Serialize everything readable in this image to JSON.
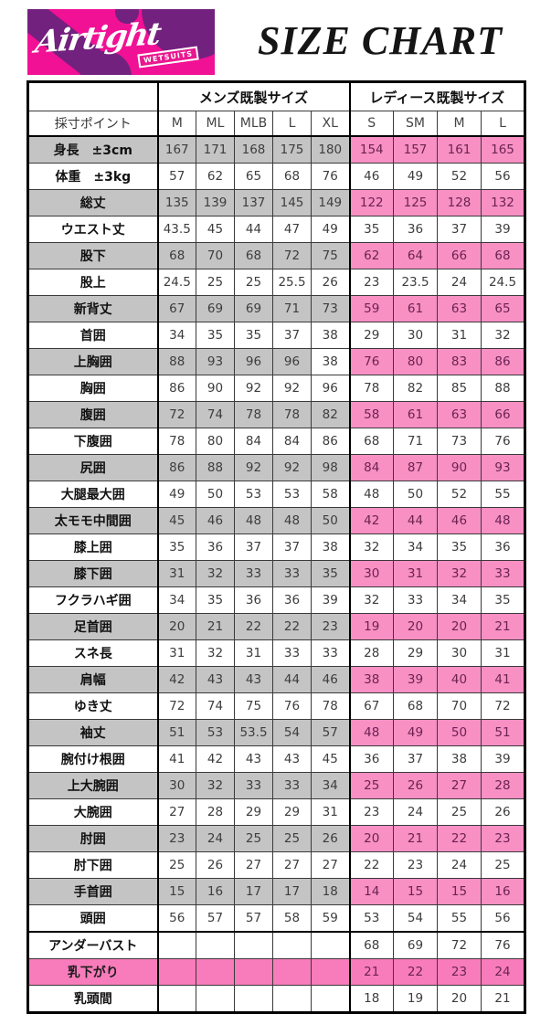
{
  "header": {
    "title": "SIZE CHART",
    "logo": {
      "brand": "Airtight",
      "sub_badge": "WETSUITS",
      "bg_color": "#f01195",
      "blob_color": "#72217e"
    }
  },
  "table": {
    "corner_label": "採寸ポイント",
    "group_headers": {
      "mens": "メンズ既製サイズ",
      "ladies": "レディース既製サイズ"
    },
    "mens_sizes": [
      "M",
      "ML",
      "MLB",
      "L",
      "XL"
    ],
    "ladies_sizes": [
      "S",
      "SM",
      "M",
      "L"
    ],
    "colors": {
      "mens_shaded_cell": "#c4c4c4",
      "ladies_shaded_cell": "#f890c4",
      "full_pink_row": "#f87cbb",
      "plain_cell": "#ffffff"
    },
    "rows": [
      {
        "label": "身長　±3cm",
        "shade": "shaded",
        "mens": [
          "167",
          "171",
          "168",
          "175",
          "180"
        ],
        "ladies": [
          "154",
          "157",
          "161",
          "165"
        ]
      },
      {
        "label": "体重　±3kg",
        "shade": "plain",
        "mens": [
          "57",
          "62",
          "65",
          "68",
          "76"
        ],
        "ladies": [
          "46",
          "49",
          "52",
          "56"
        ]
      },
      {
        "label": "総丈",
        "shade": "shaded",
        "mens": [
          "135",
          "139",
          "137",
          "145",
          "149"
        ],
        "ladies": [
          "122",
          "125",
          "128",
          "132"
        ]
      },
      {
        "label": "ウエスト丈",
        "shade": "plain",
        "mens": [
          "43.5",
          "45",
          "44",
          "47",
          "49"
        ],
        "ladies": [
          "35",
          "36",
          "37",
          "39"
        ]
      },
      {
        "label": "股下",
        "shade": "shaded",
        "mens": [
          "68",
          "70",
          "68",
          "72",
          "75"
        ],
        "ladies": [
          "62",
          "64",
          "66",
          "68"
        ]
      },
      {
        "label": "股上",
        "shade": "plain",
        "mens": [
          "24.5",
          "25",
          "25",
          "25.5",
          "26"
        ],
        "ladies": [
          "23",
          "23.5",
          "24",
          "24.5"
        ]
      },
      {
        "label": "新背丈",
        "shade": "shaded",
        "mens": [
          "67",
          "69",
          "69",
          "71",
          "73"
        ],
        "ladies": [
          "59",
          "61",
          "63",
          "65"
        ]
      },
      {
        "label": "首囲",
        "shade": "plain",
        "mens": [
          "34",
          "35",
          "35",
          "37",
          "38"
        ],
        "ladies": [
          "29",
          "30",
          "31",
          "32"
        ]
      },
      {
        "label": "上胸囲",
        "shade": "shaded",
        "white_cells": [
          4
        ],
        "mens": [
          "88",
          "93",
          "96",
          "96",
          "38"
        ],
        "ladies": [
          "76",
          "80",
          "83",
          "86"
        ]
      },
      {
        "label": "胸囲",
        "shade": "plain",
        "mens": [
          "86",
          "90",
          "92",
          "92",
          "96"
        ],
        "ladies": [
          "78",
          "82",
          "85",
          "88"
        ]
      },
      {
        "label": "腹囲",
        "shade": "shaded",
        "mens": [
          "72",
          "74",
          "78",
          "78",
          "82"
        ],
        "ladies": [
          "58",
          "61",
          "63",
          "66"
        ]
      },
      {
        "label": "下腹囲",
        "shade": "plain",
        "mens": [
          "78",
          "80",
          "84",
          "84",
          "86"
        ],
        "ladies": [
          "68",
          "71",
          "73",
          "76"
        ]
      },
      {
        "label": "尻囲",
        "shade": "shaded",
        "mens": [
          "86",
          "88",
          "92",
          "92",
          "98"
        ],
        "ladies": [
          "84",
          "87",
          "90",
          "93"
        ]
      },
      {
        "label": "大腿最大囲",
        "shade": "plain",
        "mens": [
          "49",
          "50",
          "53",
          "53",
          "58"
        ],
        "ladies": [
          "48",
          "50",
          "52",
          "55"
        ]
      },
      {
        "label": "太モモ中間囲",
        "shade": "shaded",
        "mens": [
          "45",
          "46",
          "48",
          "48",
          "50"
        ],
        "ladies": [
          "42",
          "44",
          "46",
          "48"
        ]
      },
      {
        "label": "膝上囲",
        "shade": "plain",
        "mens": [
          "35",
          "36",
          "37",
          "37",
          "38"
        ],
        "ladies": [
          "32",
          "34",
          "35",
          "36"
        ]
      },
      {
        "label": "膝下囲",
        "shade": "shaded",
        "mens": [
          "31",
          "32",
          "33",
          "33",
          "35"
        ],
        "ladies": [
          "30",
          "31",
          "32",
          "33"
        ]
      },
      {
        "label": "フクラハギ囲",
        "shade": "plain",
        "mens": [
          "34",
          "35",
          "36",
          "36",
          "39"
        ],
        "ladies": [
          "32",
          "33",
          "34",
          "35"
        ]
      },
      {
        "label": "足首囲",
        "shade": "shaded",
        "mens": [
          "20",
          "21",
          "22",
          "22",
          "23"
        ],
        "ladies": [
          "19",
          "20",
          "20",
          "21"
        ]
      },
      {
        "label": "スネ長",
        "shade": "plain",
        "mens": [
          "31",
          "32",
          "31",
          "33",
          "33"
        ],
        "ladies": [
          "28",
          "29",
          "30",
          "31"
        ]
      },
      {
        "label": "肩幅",
        "shade": "shaded",
        "mens": [
          "42",
          "43",
          "43",
          "44",
          "46"
        ],
        "ladies": [
          "38",
          "39",
          "40",
          "41"
        ]
      },
      {
        "label": "ゆき丈",
        "shade": "plain",
        "mens": [
          "72",
          "74",
          "75",
          "76",
          "78"
        ],
        "ladies": [
          "67",
          "68",
          "70",
          "72"
        ]
      },
      {
        "label": "袖丈",
        "shade": "shaded",
        "mens": [
          "51",
          "53",
          "53.5",
          "54",
          "57"
        ],
        "ladies": [
          "48",
          "49",
          "50",
          "51"
        ]
      },
      {
        "label": "腕付け根囲",
        "shade": "plain",
        "mens": [
          "41",
          "42",
          "43",
          "43",
          "45"
        ],
        "ladies": [
          "36",
          "37",
          "38",
          "39"
        ]
      },
      {
        "label": "上大腕囲",
        "shade": "shaded",
        "mens": [
          "30",
          "32",
          "33",
          "33",
          "34"
        ],
        "ladies": [
          "25",
          "26",
          "27",
          "28"
        ]
      },
      {
        "label": "大腕囲",
        "shade": "plain",
        "mens": [
          "27",
          "28",
          "29",
          "29",
          "31"
        ],
        "ladies": [
          "23",
          "24",
          "25",
          "26"
        ]
      },
      {
        "label": "肘囲",
        "shade": "shaded",
        "mens": [
          "23",
          "24",
          "25",
          "25",
          "26"
        ],
        "ladies": [
          "20",
          "21",
          "22",
          "23"
        ]
      },
      {
        "label": "肘下囲",
        "shade": "plain",
        "mens": [
          "25",
          "26",
          "27",
          "27",
          "27"
        ],
        "ladies": [
          "22",
          "23",
          "24",
          "25"
        ]
      },
      {
        "label": "手首囲",
        "shade": "shaded",
        "mens": [
          "15",
          "16",
          "17",
          "17",
          "18"
        ],
        "ladies": [
          "14",
          "15",
          "15",
          "16"
        ]
      },
      {
        "label": "頭囲",
        "shade": "plain",
        "mens": [
          "56",
          "57",
          "57",
          "58",
          "59"
        ],
        "ladies": [
          "53",
          "54",
          "55",
          "56"
        ]
      },
      {
        "label": "アンダーバスト",
        "shade": "plain",
        "sep_top": true,
        "mens": [
          "",
          "",
          "",
          "",
          ""
        ],
        "ladies": [
          "68",
          "69",
          "72",
          "76"
        ]
      },
      {
        "label": "乳下がり",
        "shade": "full",
        "mens": [
          "",
          "",
          "",
          "",
          ""
        ],
        "ladies": [
          "21",
          "22",
          "23",
          "24"
        ]
      },
      {
        "label": "乳頭間",
        "shade": "plain",
        "mens": [
          "",
          "",
          "",
          "",
          ""
        ],
        "ladies": [
          "18",
          "19",
          "20",
          "21"
        ]
      }
    ]
  }
}
